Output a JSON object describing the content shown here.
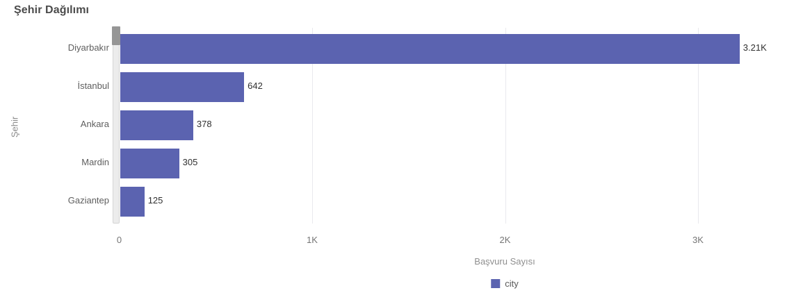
{
  "header": {
    "title": "Şehir Dağılımı"
  },
  "colors": {
    "background": "#ffffff",
    "bar": "#5b63b0",
    "gridline": "#e9e9ed",
    "title_text": "#4b4b4b",
    "axis_text": "#757575",
    "axis_title_text": "#8f8f8f",
    "category_text": "#5e5e5e",
    "value_text": "#303030",
    "scrollbar_track": "#ececec",
    "scrollbar_thumb": "#969696"
  },
  "scrollbar": {
    "orientation": "vertical",
    "thumb_position": "top"
  },
  "chart_data": {
    "type": "bar",
    "orientation": "horizontal",
    "title": "Şehir Dağılımı",
    "xlabel": "Başvuru Sayısı",
    "ylabel": "Şehir",
    "categories": [
      "Diyarbakır",
      "İstanbul",
      "Ankara",
      "Mardin",
      "Gaziantep"
    ],
    "values": [
      3210,
      642,
      378,
      305,
      125
    ],
    "value_labels": [
      "3.21K",
      "642",
      "378",
      "305",
      "125"
    ],
    "series_name": "city",
    "xlim": [
      0,
      3500
    ],
    "xticks": {
      "values": [
        0,
        1000,
        2000,
        3000
      ],
      "labels": [
        "0",
        "1K",
        "2K",
        "3K"
      ]
    },
    "grid": true,
    "legend": {
      "position": "bottom-center",
      "entries": [
        {
          "label": "city",
          "color": "#5b63b0"
        }
      ]
    }
  }
}
